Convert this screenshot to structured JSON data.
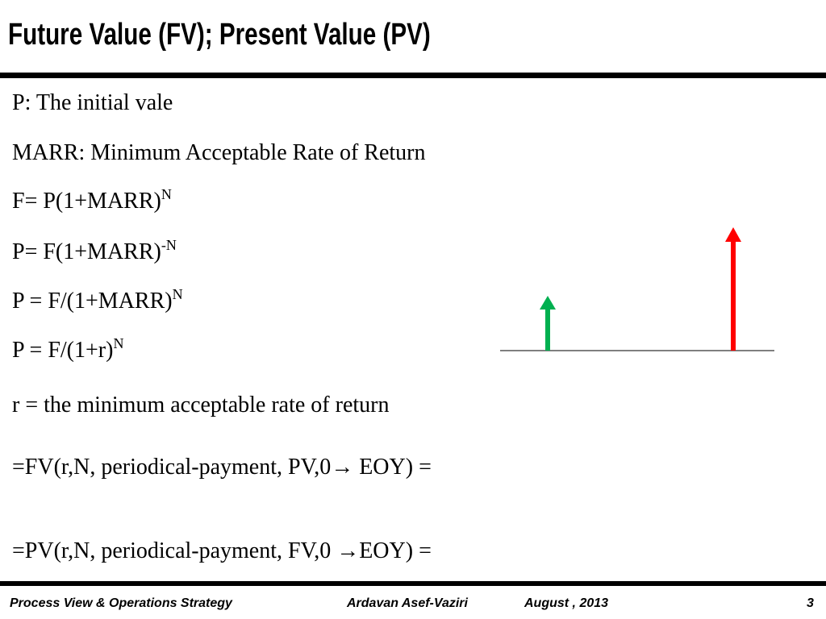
{
  "header": {
    "title": "Future Value (FV); Present Value (PV)"
  },
  "lines": [
    {
      "text": "P: The initial vale"
    },
    {
      "text": "MARR: Minimum Acceptable Rate of Return"
    },
    {
      "text": "F= P(1+MARR)",
      "sup": "N"
    },
    {
      "text": "P= F(1+MARR)",
      "sup": "-N"
    },
    {
      "text": "P = F/(1+MARR)",
      "sup": "N"
    },
    {
      "text": "P = F/(1+r)",
      "sup": "N"
    },
    {
      "text": "r = the minimum acceptable rate of return"
    },
    {
      "text": "=FV(r,N, periodical-payment, PV,0→ EOY) ="
    },
    {
      "text": "=PV(r,N, periodical-payment, FV,0 →EOY) ="
    }
  ],
  "footer": {
    "course": "Process View & Operations Strategy",
    "author": "Ardavan Asef-Vaziri",
    "date": "August , 2013",
    "page": "3"
  }
}
